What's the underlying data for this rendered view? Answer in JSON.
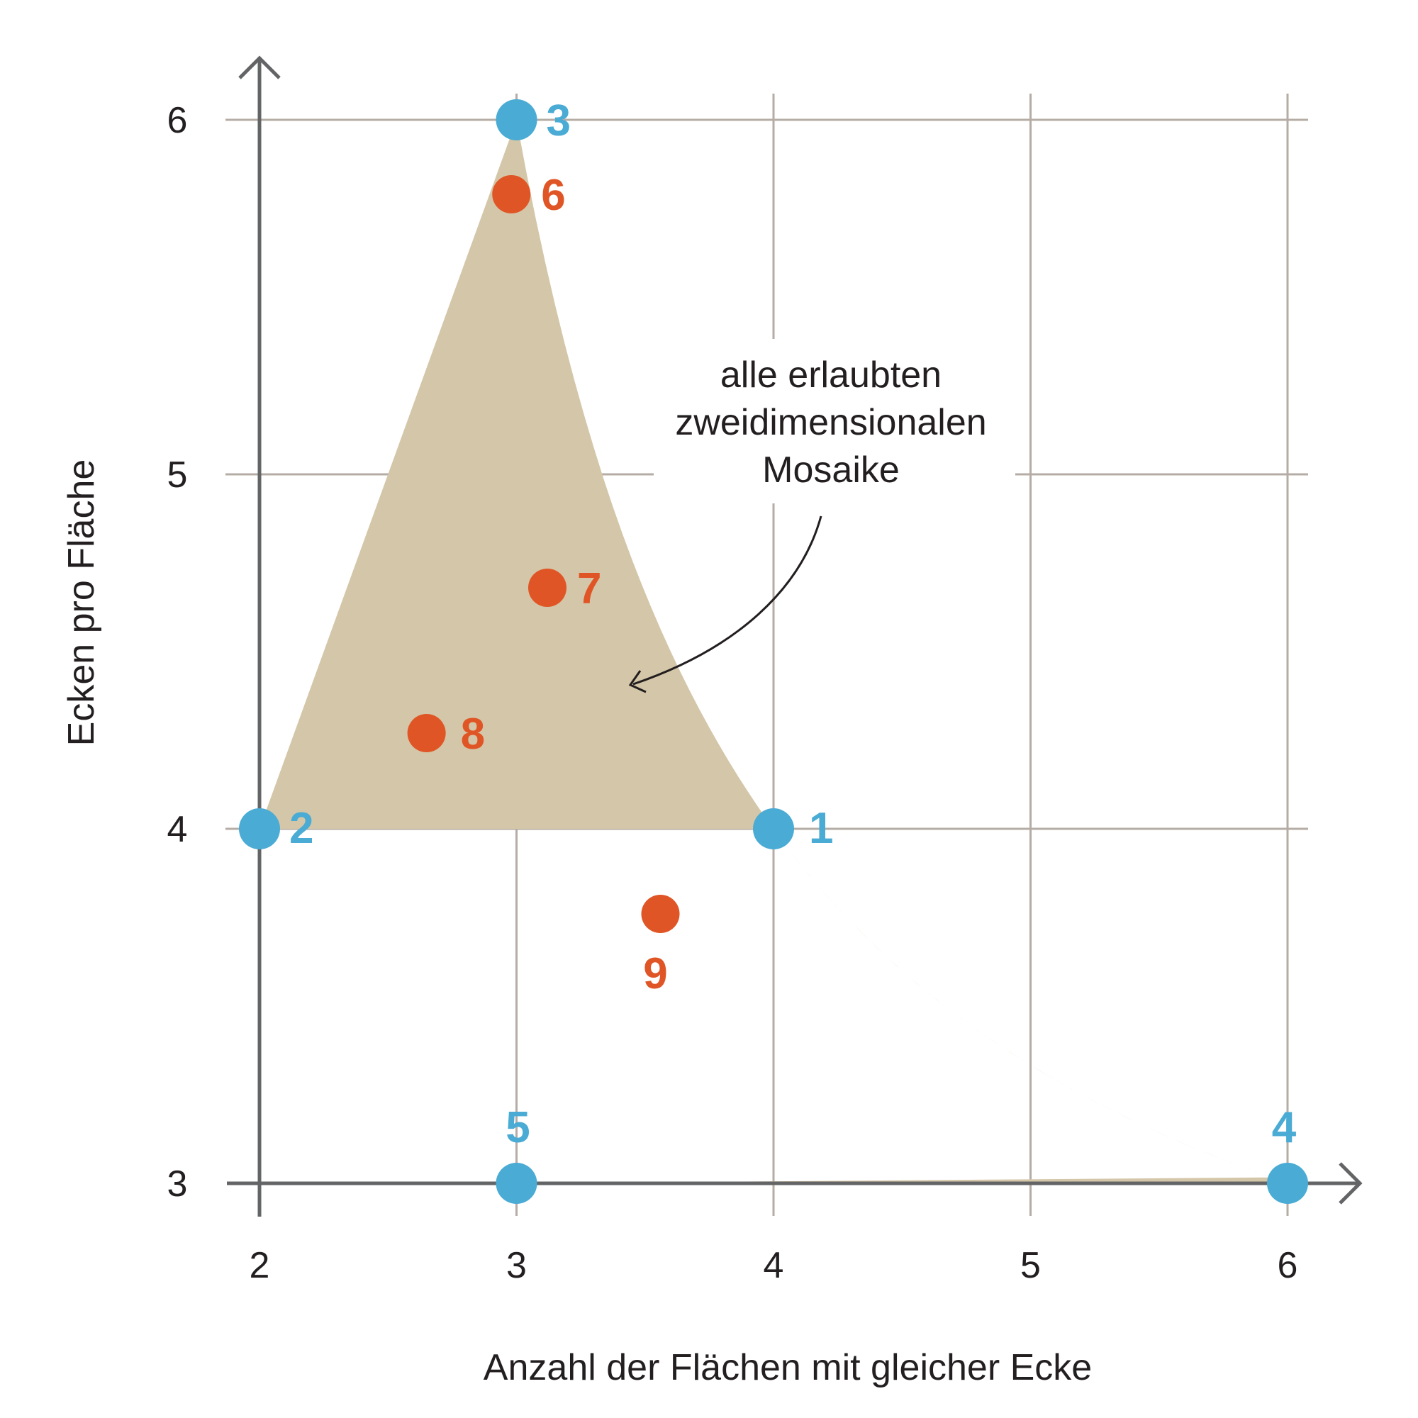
{
  "chart_data": {
    "type": "scatter",
    "xlabel": "Anzahl der Flächen mit gleicher Ecke",
    "ylabel": "Ecken pro Fläche",
    "xlim": [
      2,
      6
    ],
    "ylim": [
      3,
      6
    ],
    "x_ticks": [
      "2",
      "3",
      "4",
      "5",
      "6"
    ],
    "y_ticks": [
      "3",
      "4",
      "5",
      "6"
    ],
    "grid": true,
    "colors": {
      "region": "#d4c6a8",
      "blue": "#4aabd4",
      "orange": "#e05525",
      "grid": "#b5aca6",
      "axis": "#636466",
      "text": "#231f20"
    },
    "region": {
      "label_lines": [
        "alle erlaubten",
        "zweidimensionalen",
        "Mosaike"
      ],
      "boundary_upper_left": "line from (2,4) to (3,6)",
      "boundary_upper_right": "y = 2x/(x-2), from (3,6) to (6,3)",
      "boundary_lower": "x = 2y/(y-2), from (2,4) to (3,3) and along y = 3 to (6,3)"
    },
    "points": [
      {
        "label": "1",
        "x": 4,
        "y": 4,
        "color": "blue"
      },
      {
        "label": "2",
        "x": 2,
        "y": 4,
        "color": "blue"
      },
      {
        "label": "3",
        "x": 3,
        "y": 6,
        "color": "blue"
      },
      {
        "label": "4",
        "x": 6,
        "y": 3,
        "color": "blue"
      },
      {
        "label": "5",
        "x": 3,
        "y": 3,
        "color": "blue"
      },
      {
        "label": "6",
        "x": 2.98,
        "y": 5.79,
        "color": "orange"
      },
      {
        "label": "7",
        "x": 3.12,
        "y": 4.68,
        "color": "orange"
      },
      {
        "label": "8",
        "x": 2.65,
        "y": 4.27,
        "color": "orange"
      },
      {
        "label": "9",
        "x": 3.56,
        "y": 3.76,
        "color": "orange"
      }
    ]
  }
}
